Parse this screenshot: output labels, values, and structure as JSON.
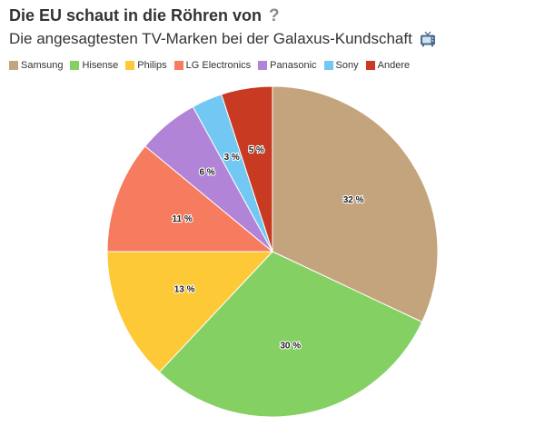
{
  "header": {
    "title": "Die EU schaut in die Röhren von",
    "title_icon": "question-mark-icon",
    "title_icon_glyph": "?",
    "subtitle": "Die angesagtesten TV-Marken bei der Galaxus-Kundschaft",
    "subtitle_icon": "television-icon"
  },
  "chart_data": {
    "type": "pie",
    "title": "Die EU schaut in die Röhren von",
    "subtitle": "Die angesagtesten TV-Marken bei der Galaxus-Kundschaft",
    "legend_position": "top-left",
    "start_angle": "12 o'clock",
    "direction": "clockwise",
    "slices": [
      {
        "name": "Samsung",
        "value": 32,
        "label": "32 %",
        "color": "#c4a47c"
      },
      {
        "name": "Hisense",
        "value": 30,
        "label": "30 %",
        "color": "#85d063"
      },
      {
        "name": "Philips",
        "value": 13,
        "label": "13 %",
        "color": "#fdc936"
      },
      {
        "name": "LG Electronics",
        "value": 11,
        "label": "11 %",
        "color": "#f67b5f"
      },
      {
        "name": "Panasonic",
        "value": 6,
        "label": "6 %",
        "color": "#b184d8"
      },
      {
        "name": "Sony",
        "value": 3,
        "label": "3 %",
        "color": "#72c8f2"
      },
      {
        "name": "Andere",
        "value": 5,
        "label": "5 %",
        "color": "#c83a22"
      }
    ]
  }
}
